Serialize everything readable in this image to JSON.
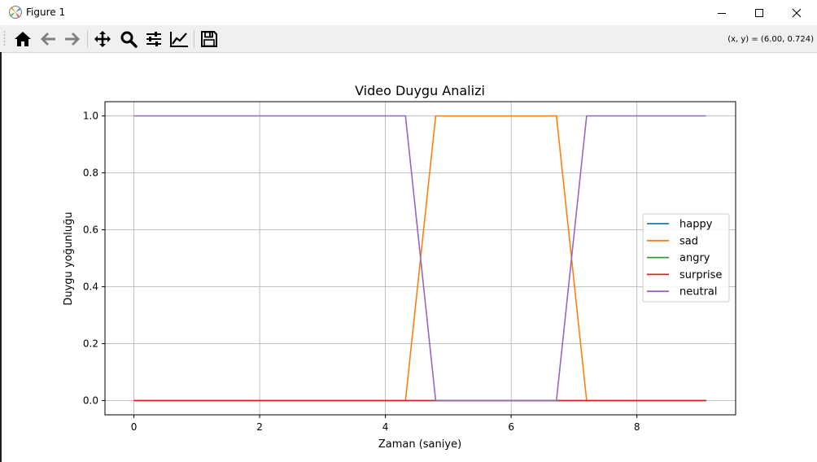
{
  "window": {
    "title": "Figure 1",
    "coords_readout": "(x, y) = (6.00, 0.724)"
  },
  "toolbar": {
    "buttons": [
      "home-icon",
      "back-arrow-icon",
      "forward-arrow-icon",
      "pan-move-icon",
      "zoom-magnifier-icon",
      "configure-subplots-icon",
      "edit-axis-icon",
      "save-disk-icon"
    ]
  },
  "colors": {
    "happy": "#1f77b4",
    "sad": "#ff7f0e",
    "angry": "#2ca02c",
    "surprise": "#d62728",
    "neutral": "#9467bd"
  },
  "chart_data": {
    "type": "line",
    "title": "Video Duygu Analizi",
    "xlabel": "Zaman (saniye)",
    "ylabel": "Duygu yoğunluğu",
    "xlim": [
      -0.46,
      9.57
    ],
    "ylim": [
      -0.05,
      1.05
    ],
    "xticks": [
      0,
      2,
      4,
      6,
      8
    ],
    "yticks": [
      0.0,
      0.2,
      0.4,
      0.6,
      0.8,
      1.0
    ],
    "xtick_labels": [
      "0",
      "2",
      "4",
      "6",
      "8"
    ],
    "ytick_labels": [
      "0.0",
      "0.2",
      "0.4",
      "0.6",
      "0.8",
      "1.0"
    ],
    "grid": true,
    "legend_position": "center-right",
    "series": [
      {
        "name": "happy",
        "x": [
          0,
          9.1
        ],
        "y": [
          0,
          0
        ]
      },
      {
        "name": "sad",
        "x": [
          0,
          4.32,
          4.8,
          6.72,
          7.2,
          9.1
        ],
        "y": [
          0,
          0,
          1,
          1,
          0,
          0
        ]
      },
      {
        "name": "angry",
        "x": [
          0,
          9.1
        ],
        "y": [
          0,
          0
        ]
      },
      {
        "name": "surprise",
        "x": [
          0,
          9.1
        ],
        "y": [
          0,
          0
        ]
      },
      {
        "name": "neutral",
        "x": [
          0,
          4.32,
          4.8,
          6.72,
          7.2,
          9.1
        ],
        "y": [
          1,
          1,
          0,
          0,
          1,
          1
        ]
      }
    ]
  }
}
